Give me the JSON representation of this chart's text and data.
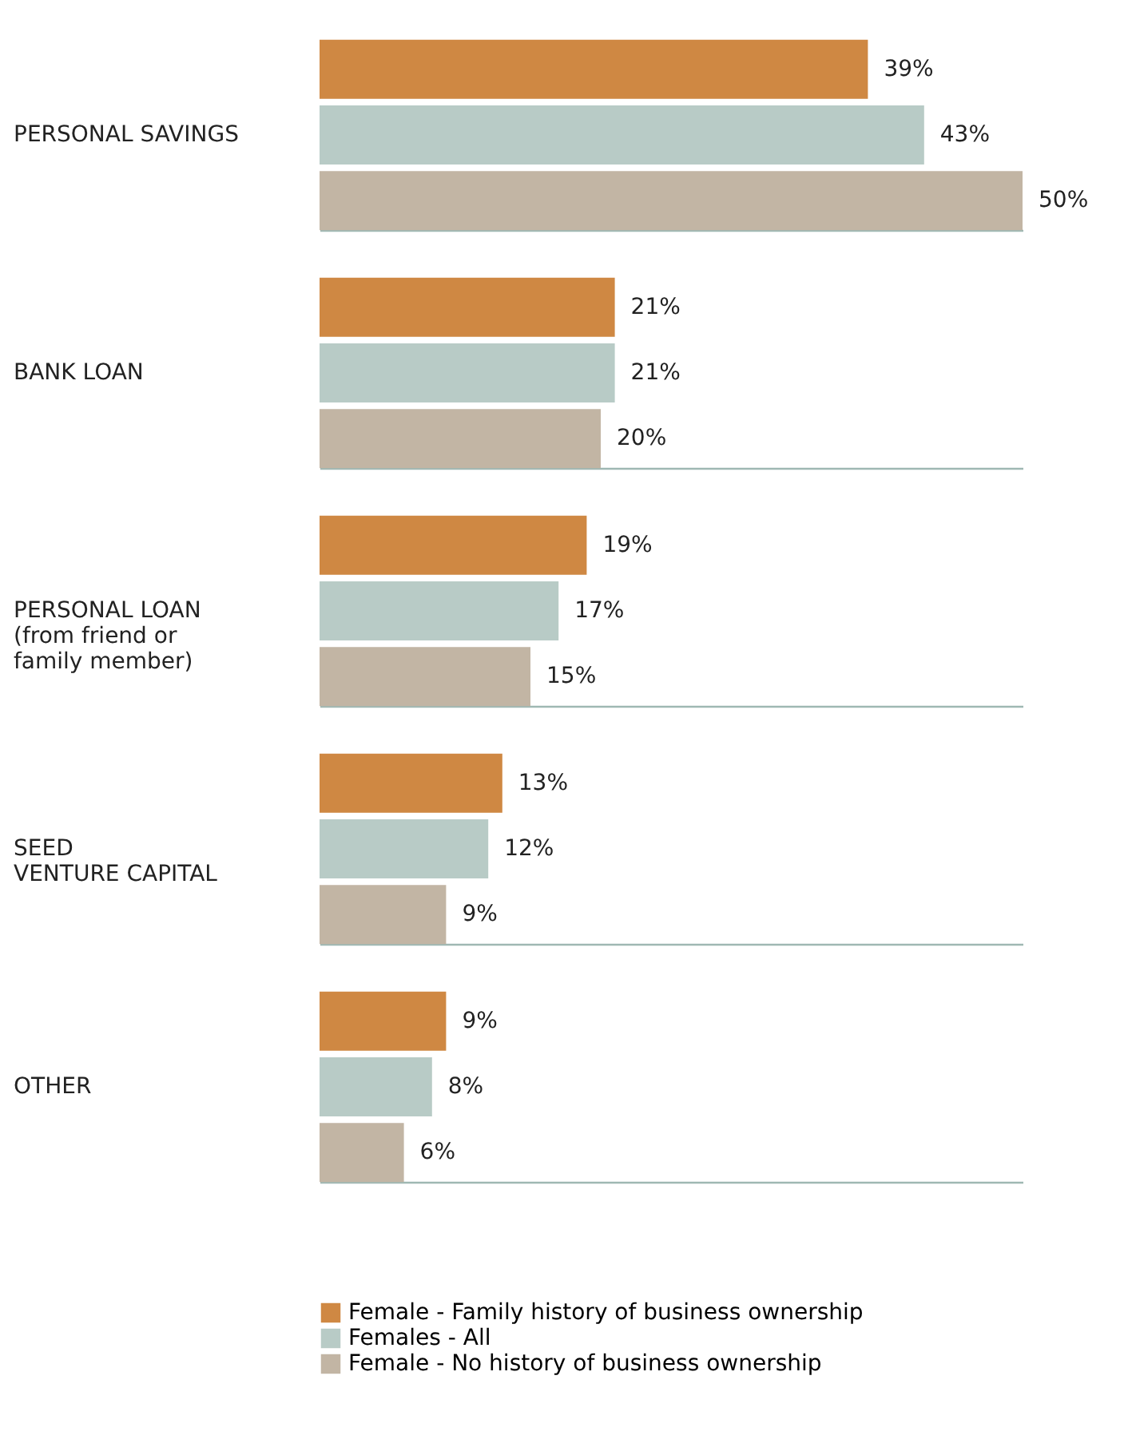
{
  "chart_data": {
    "type": "bar",
    "orientation": "horizontal",
    "grid": "y",
    "legend": "bottom",
    "categories": [
      "PERSONAL SAVINGS",
      "BANK LOAN",
      "PERSONAL LOAN\n(from friend or\nfamily member)",
      "SEED\nVENTURE CAPITAL",
      "OTHER"
    ],
    "series": [
      {
        "name": "Female - Family history of business ownership",
        "color": "#cf8843",
        "values": [
          39,
          21,
          19,
          13,
          9
        ],
        "value_labels": [
          "39%",
          "21%",
          "19%",
          "13%",
          "9%"
        ]
      },
      {
        "name": "Females - All",
        "color": "#b8cbc6",
        "values": [
          43,
          21,
          17,
          12,
          8
        ],
        "value_labels": [
          "43%",
          "21%",
          "17%",
          "12%",
          "8%"
        ]
      },
      {
        "name": "Female - No history of business ownership",
        "color": "#c2b5a4",
        "values": [
          50,
          20,
          15,
          9,
          6
        ],
        "value_labels": [
          "50%",
          "20%",
          "15%",
          "9%",
          "6%"
        ]
      }
    ]
  }
}
